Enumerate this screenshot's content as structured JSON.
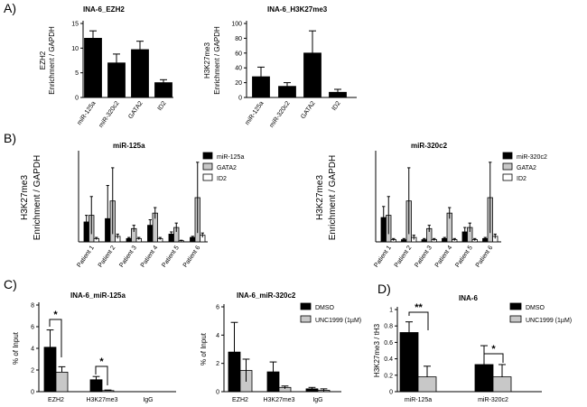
{
  "chart_data": [
    {
      "panel": "A)",
      "type": "bar",
      "title": "INA-6_EZH2",
      "ylabel": [
        "EZH2",
        "Enrichment / GAPDH"
      ],
      "ylim": [
        0,
        15
      ],
      "yticks": [
        0,
        5,
        10,
        15
      ],
      "categories": [
        "miR-125a",
        "miR-320c2",
        "GATA2",
        "ID2"
      ],
      "series": [
        {
          "name": "EZH2",
          "color": "#000000",
          "values": [
            12,
            7,
            9.7,
            3
          ],
          "errors": [
            1.5,
            1.8,
            1.7,
            0.6
          ]
        }
      ]
    },
    {
      "panel": "",
      "type": "bar",
      "title": "INA-6_H3K27me3",
      "ylabel": [
        "H3K27me3",
        "Enrichment / GAPDH"
      ],
      "ylim": [
        0,
        100
      ],
      "yticks": [
        0,
        20,
        40,
        60,
        80,
        100
      ],
      "categories": [
        "miR-125a",
        "miR-320c2",
        "GATA2",
        "ID2"
      ],
      "series": [
        {
          "name": "H3K27me3",
          "color": "#000000",
          "values": [
            28,
            15,
            60,
            7
          ],
          "errors": [
            13,
            5,
            30,
            4
          ]
        }
      ]
    },
    {
      "panel": "B)",
      "type": "bar",
      "title": "miR-125a",
      "ylabel": [
        "H3K27me3",
        "Enrichment / GAPDH"
      ],
      "ylim": [
        0,
        80
      ],
      "categories": [
        "Patient 1",
        "Patient 2",
        "Patient 3",
        "Patient 4",
        "Patient 5",
        "Patient 6"
      ],
      "series": [
        {
          "name": "miR-125a",
          "color": "#000000",
          "values": [
            18,
            21,
            3,
            15,
            7,
            4
          ],
          "errors": [
            6,
            30,
            1,
            5,
            2,
            1
          ]
        },
        {
          "name": "GATA2",
          "color": "#c8c8c8",
          "values": [
            24,
            37,
            12,
            26,
            13,
            40
          ],
          "errors": [
            17,
            30,
            3,
            5,
            4,
            32
          ]
        },
        {
          "name": "ID2",
          "color": "#ffffff",
          "values": [
            3,
            5,
            3,
            3,
            1,
            6
          ],
          "errors": [
            1,
            2,
            1,
            1,
            0.5,
            2
          ]
        }
      ]
    },
    {
      "panel": "",
      "type": "bar",
      "title": "miR-320c2",
      "ylabel": [
        "H3K27me3",
        "Enrichment / GAPDH"
      ],
      "ylim": [
        0,
        80
      ],
      "categories": [
        "Patient 1",
        "Patient 2",
        "Patient 3",
        "Patient 4",
        "Patient 5",
        "Patient 6"
      ],
      "series": [
        {
          "name": "miR-320c2",
          "color": "#000000",
          "values": [
            22,
            2,
            2,
            3,
            9,
            3
          ],
          "errors": [
            10,
            1,
            1,
            1,
            4,
            1
          ]
        },
        {
          "name": "GATA2",
          "color": "#c8c8c8",
          "values": [
            24,
            37,
            12,
            26,
            13,
            40
          ],
          "errors": [
            17,
            30,
            3,
            5,
            4,
            32
          ]
        },
        {
          "name": "ID2",
          "color": "#ffffff",
          "values": [
            2,
            4,
            2,
            2,
            2,
            5
          ],
          "errors": [
            1,
            2,
            1,
            1,
            1,
            2
          ]
        }
      ]
    },
    {
      "panel": "C)",
      "type": "bar",
      "title": "INA-6_miR-125a",
      "ylabel": [
        "% of Input"
      ],
      "ylim": [
        0,
        8
      ],
      "yticks": [
        0,
        2,
        4,
        6,
        8
      ],
      "categories": [
        "EZH2",
        "H3K27me3",
        "IgG"
      ],
      "series": [
        {
          "name": "DMSO",
          "color": "#000000",
          "values": [
            4.1,
            1.1,
            0
          ],
          "errors": [
            1.6,
            0.3,
            0
          ]
        },
        {
          "name": "UNC1999 (1µM)",
          "color": "#c8c8c8",
          "values": [
            1.8,
            0.1,
            0
          ],
          "errors": [
            0.5,
            0.05,
            0
          ]
        }
      ],
      "annotations": [
        "*",
        "*"
      ]
    },
    {
      "panel": "",
      "type": "bar",
      "title": "INA-6_miR-320c2",
      "ylabel": [
        "% of Input"
      ],
      "ylim": [
        0,
        6
      ],
      "yticks": [
        0,
        2,
        4,
        6
      ],
      "categories": [
        "EZH2",
        "H3K27me3",
        "IgG"
      ],
      "series": [
        {
          "name": "DMSO",
          "color": "#000000",
          "values": [
            2.8,
            1.4,
            0.2
          ],
          "errors": [
            2.1,
            0.7,
            0.1
          ]
        },
        {
          "name": "UNC1999 (1µM)",
          "color": "#c8c8c8",
          "values": [
            1.5,
            0.3,
            0.1
          ],
          "errors": [
            0.8,
            0.1,
            0.1
          ]
        }
      ],
      "legend": "top-right"
    },
    {
      "panel": "D)",
      "type": "bar",
      "title": "INA-6",
      "ylabel": [
        "H3K27me3 / tH3"
      ],
      "ylim": [
        0,
        1.0
      ],
      "yticks": [
        0.0,
        0.2,
        0.4,
        0.6,
        0.8,
        1.0
      ],
      "categories": [
        "miR-125a",
        "miR-320c2"
      ],
      "series": [
        {
          "name": "DMSO",
          "color": "#000000",
          "values": [
            0.72,
            0.33
          ],
          "errors": [
            0.13,
            0.23
          ]
        },
        {
          "name": "UNC1999 (1µM)",
          "color": "#c8c8c8",
          "values": [
            0.18,
            0.18
          ],
          "errors": [
            0.13,
            0.15
          ]
        }
      ],
      "annotations": [
        "**",
        "*"
      ],
      "legend": "top-right"
    }
  ]
}
